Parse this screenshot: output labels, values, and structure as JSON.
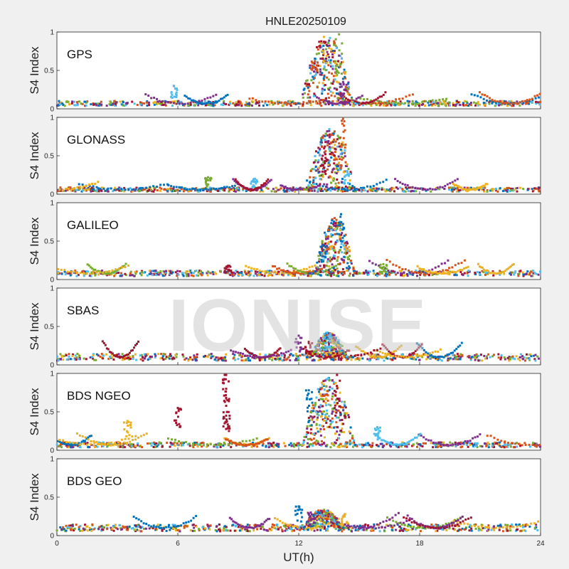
{
  "figure": {
    "title": "HNLE20250109",
    "watermark": "IONISE",
    "xlabel": "UT(h)",
    "background": "#f0f0f0"
  },
  "series_colors": [
    "#0072BD",
    "#D95319",
    "#EDB120",
    "#7E2F8E",
    "#77AC30",
    "#4DBEEE",
    "#A2142F"
  ],
  "chart_data": [
    {
      "type": "scatter",
      "panel": "GPS",
      "ylabel": "S4 Index",
      "xlim": [
        0,
        24
      ],
      "ylim": [
        0,
        1
      ],
      "xticks": [
        0,
        6,
        12,
        18,
        24
      ],
      "yticks": [
        0,
        0.5,
        1
      ],
      "baseline": 0.07,
      "event": {
        "center": 13.4,
        "width": 1.3,
        "peak": 0.55
      },
      "peaks": [
        {
          "series": 4,
          "x": 14.0,
          "y": 0.97
        },
        {
          "series": 1,
          "x": 12.8,
          "y": 0.62
        },
        {
          "series": 3,
          "x": 14.2,
          "y": 0.35
        },
        {
          "series": 5,
          "x": 5.8,
          "y": 0.3
        }
      ]
    },
    {
      "type": "scatter",
      "panel": "GLONASS",
      "ylabel": "S4 Index",
      "xlim": [
        0,
        24
      ],
      "ylim": [
        0,
        1
      ],
      "xticks": [
        0,
        6,
        12,
        18,
        24
      ],
      "yticks": [
        0,
        0.5,
        1
      ],
      "baseline": 0.06,
      "event": {
        "center": 13.6,
        "width": 1.2,
        "peak": 0.5
      },
      "peaks": [
        {
          "series": 1,
          "x": 14.2,
          "y": 0.98
        },
        {
          "series": 6,
          "x": 13.3,
          "y": 0.62
        },
        {
          "series": 5,
          "x": 14.4,
          "y": 0.3
        },
        {
          "series": 4,
          "x": 7.5,
          "y": 0.22
        },
        {
          "series": 5,
          "x": 9.8,
          "y": 0.2
        }
      ]
    },
    {
      "type": "scatter",
      "panel": "GALILEO",
      "ylabel": "S4 Index",
      "xlim": [
        0,
        24
      ],
      "ylim": [
        0,
        1
      ],
      "xticks": [
        0,
        6,
        12,
        18,
        24
      ],
      "yticks": [
        0,
        0.5,
        1
      ],
      "baseline": 0.08,
      "event": {
        "center": 13.8,
        "width": 1.0,
        "peak": 0.45
      },
      "peaks": [
        {
          "series": 0,
          "x": 14.1,
          "y": 0.85
        },
        {
          "series": 0,
          "x": 13.2,
          "y": 0.45
        },
        {
          "series": 4,
          "x": 16.2,
          "y": 0.2
        },
        {
          "series": 6,
          "x": 8.5,
          "y": 0.18
        }
      ]
    },
    {
      "type": "scatter",
      "panel": "SBAS",
      "ylabel": "S4 Index",
      "xlim": [
        0,
        24
      ],
      "ylim": [
        0,
        1
      ],
      "xticks": [
        0,
        6,
        12,
        18,
        24
      ],
      "yticks": [
        0,
        0.5,
        1
      ],
      "baseline": 0.1,
      "event": {
        "center": 13.5,
        "width": 0.9,
        "peak": 0.2
      },
      "peaks": [
        {
          "series": 5,
          "x": 13.4,
          "y": 0.42
        },
        {
          "series": 3,
          "x": 12.0,
          "y": 0.38
        },
        {
          "series": 6,
          "x": 12.5,
          "y": 0.3
        }
      ]
    },
    {
      "type": "scatter",
      "panel": "BDS NGEO",
      "ylabel": "S4 Index",
      "xlim": [
        0,
        24
      ],
      "ylim": [
        0,
        1
      ],
      "xticks": [
        0,
        6,
        12,
        18,
        24
      ],
      "yticks": [
        0,
        0.5,
        1
      ],
      "baseline": 0.07,
      "event": {
        "center": 13.5,
        "width": 1.3,
        "peak": 0.55
      },
      "peaks": [
        {
          "series": 6,
          "x": 13.9,
          "y": 0.98
        },
        {
          "series": 0,
          "x": 12.5,
          "y": 0.78
        },
        {
          "series": 6,
          "x": 8.4,
          "y": 0.98
        },
        {
          "series": 6,
          "x": 8.4,
          "y": 0.8
        },
        {
          "series": 6,
          "x": 8.4,
          "y": 0.45
        },
        {
          "series": 6,
          "x": 6.0,
          "y": 0.55
        },
        {
          "series": 2,
          "x": 3.5,
          "y": 0.38
        },
        {
          "series": 5,
          "x": 15.9,
          "y": 0.3
        }
      ]
    },
    {
      "type": "scatter",
      "panel": "BDS GEO",
      "ylabel": "S4 Index",
      "xlim": [
        0,
        24
      ],
      "ylim": [
        0,
        1
      ],
      "xticks": [
        0,
        6,
        12,
        18,
        24
      ],
      "yticks": [
        0,
        0.5,
        1
      ],
      "baseline": 0.1,
      "event": {
        "center": 13.2,
        "width": 1.0,
        "peak": 0.15
      },
      "peaks": [
        {
          "series": 0,
          "x": 12.0,
          "y": 0.38
        },
        {
          "series": 3,
          "x": 12.6,
          "y": 0.3
        },
        {
          "series": 2,
          "x": 14.3,
          "y": 0.28
        }
      ]
    }
  ]
}
